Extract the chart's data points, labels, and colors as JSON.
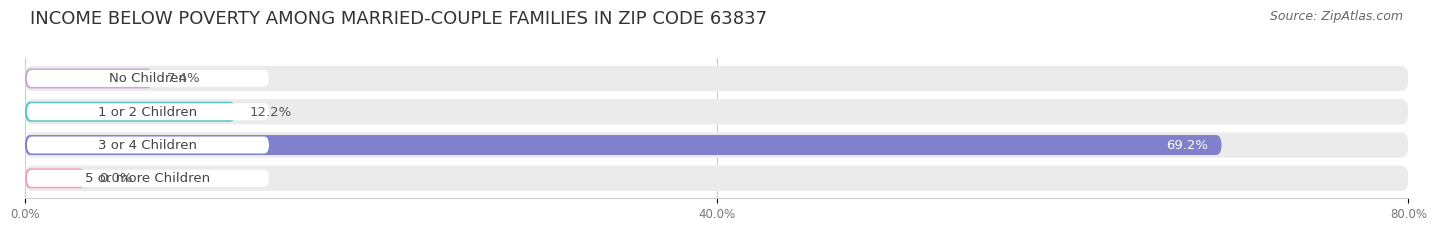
{
  "title": "INCOME BELOW POVERTY AMONG MARRIED-COUPLE FAMILIES IN ZIP CODE 63837",
  "source": "Source: ZipAtlas.com",
  "categories": [
    "No Children",
    "1 or 2 Children",
    "3 or 4 Children",
    "5 or more Children"
  ],
  "values": [
    7.4,
    12.2,
    69.2,
    0.0
  ],
  "bar_colors": [
    "#c9a8d4",
    "#5ec4c0",
    "#8080cc",
    "#f4a0b5"
  ],
  "bar_bg_color": "#ebebeb",
  "label_bg_color": "#ffffff",
  "label_text_color": "#444444",
  "value_colors": [
    "#555555",
    "#555555",
    "#ffffff",
    "#555555"
  ],
  "xlim": [
    0,
    80.0
  ],
  "xticks": [
    0.0,
    40.0,
    80.0
  ],
  "xticklabels": [
    "0.0%",
    "40.0%",
    "80.0%"
  ],
  "title_fontsize": 13,
  "source_fontsize": 9,
  "bar_label_fontsize": 9.5,
  "value_fontsize": 9.5,
  "figsize": [
    14.06,
    2.33
  ],
  "dpi": 100
}
